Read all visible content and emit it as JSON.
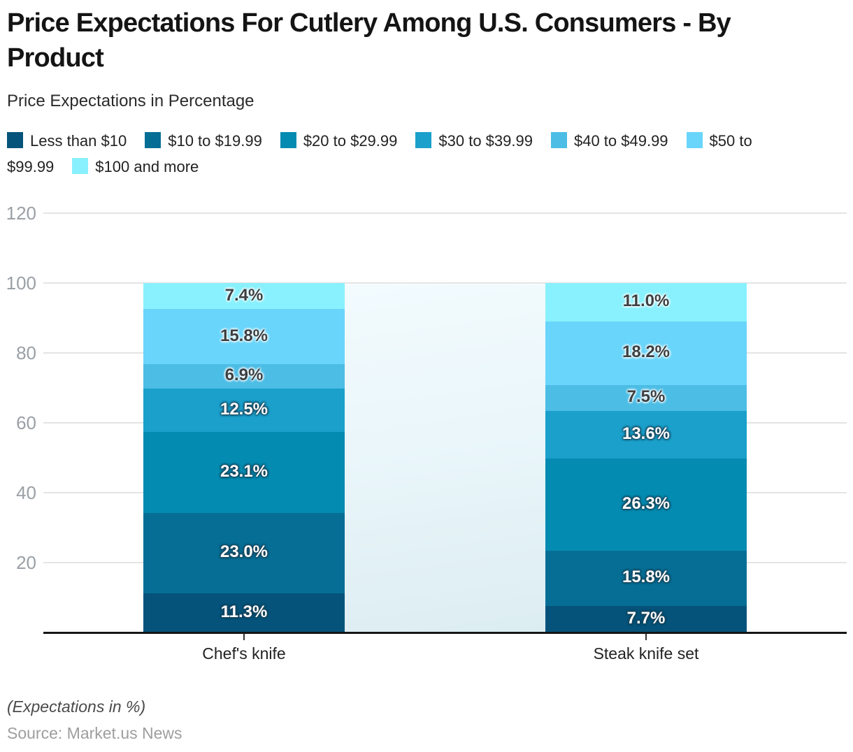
{
  "header": {
    "title": "Price Expectations For Cutlery Among U.S. Consumers - By Product",
    "subtitle": "Price Expectations in Percentage"
  },
  "footer": {
    "note": "(Expectations in %)",
    "source": "Source: Market.us News"
  },
  "chart_data": {
    "type": "bar",
    "stacked": true,
    "title": "Price Expectations For Cutlery Among U.S. Consumers - By Product",
    "categories": [
      "Chef's knife",
      "Steak knife set"
    ],
    "series": [
      {
        "name": "Less than $10",
        "color": "#05537A",
        "values": [
          11.3,
          7.7
        ]
      },
      {
        "name": "$10 to $19.99",
        "color": "#066E95",
        "values": [
          23.0,
          15.8
        ]
      },
      {
        "name": "$20 to $29.99",
        "color": "#048BB1",
        "values": [
          23.1,
          26.3
        ]
      },
      {
        "name": "$30 to $39.99",
        "color": "#1AA0CB",
        "values": [
          12.5,
          13.6
        ]
      },
      {
        "name": "$40 to $49.99",
        "color": "#4CBDE5",
        "values": [
          6.9,
          7.5
        ]
      },
      {
        "name": "$50 to $99.99",
        "color": "#69D5FA",
        "values": [
          15.8,
          18.2
        ]
      },
      {
        "name": "$100 and more",
        "color": "#89F1FD",
        "values": [
          7.4,
          11.0
        ]
      }
    ],
    "y_ticks": [
      20,
      40,
      60,
      80,
      100,
      120
    ],
    "ylim": [
      0,
      120
    ],
    "xlabel": "",
    "ylabel": "",
    "value_suffix": "%",
    "grid": true,
    "legend_position": "top"
  },
  "colors": {
    "grid": "#e4e4e4",
    "axis": "#161616",
    "tick_label": "#9aa0a6"
  }
}
